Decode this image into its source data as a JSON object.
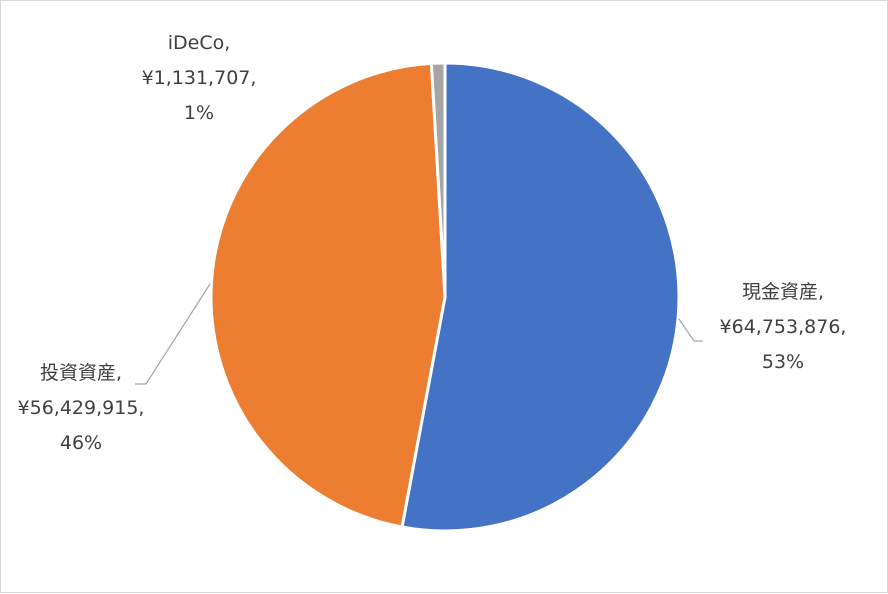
{
  "chart_data": {
    "type": "pie",
    "title": "",
    "start_angle_deg": 0,
    "direction": "clockwise",
    "legend": "none",
    "slices": [
      {
        "key": "cash",
        "category": "現金資産,",
        "value": "¥64,753,876,",
        "percent": "53%",
        "amount": 64753876,
        "color": "#4472c4"
      },
      {
        "key": "invest",
        "category": "投資資産,",
        "value": "¥56,429,915,",
        "percent": "46%",
        "amount": 56429915,
        "color": "#ed7d31"
      },
      {
        "key": "ideco",
        "category": "iDeCo,",
        "value": "¥1,131,707,",
        "percent": "1%",
        "amount": 1131707,
        "color": "#a5a5a5"
      }
    ]
  }
}
